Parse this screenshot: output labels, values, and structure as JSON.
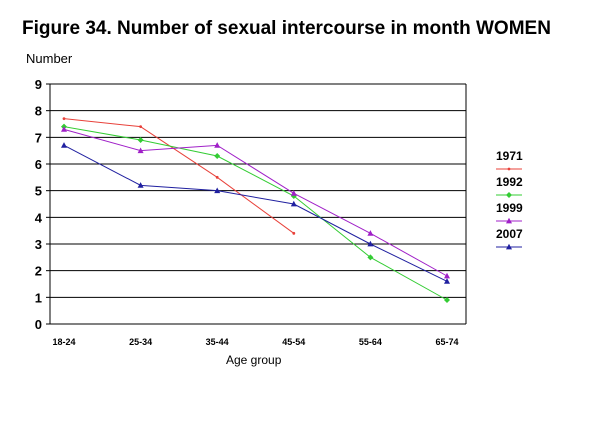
{
  "chart_data": {
    "type": "line",
    "title": "Figure 34. Number of sexual intercourse in month WOMEN",
    "ylabel": "Number",
    "xlabel": "Age group",
    "ylim": [
      0,
      9
    ],
    "yticks": [
      0,
      1,
      2,
      3,
      4,
      5,
      6,
      7,
      8,
      9
    ],
    "grid": true,
    "legend_position": "right",
    "categories": [
      "18-24",
      "25-34",
      "35-44",
      "45-54",
      "55-64",
      "65-74"
    ],
    "series": [
      {
        "name": "1971",
        "color": "#e8413a",
        "marker": "dot",
        "values": [
          7.7,
          7.4,
          5.5,
          3.4,
          null,
          null
        ]
      },
      {
        "name": "1992",
        "color": "#33cc33",
        "marker": "diamond",
        "values": [
          7.4,
          6.9,
          6.3,
          4.8,
          2.5,
          0.9
        ]
      },
      {
        "name": "1999",
        "color": "#a020c8",
        "marker": "triangle",
        "values": [
          7.3,
          6.5,
          6.7,
          4.9,
          3.4,
          1.8
        ]
      },
      {
        "name": "2007",
        "color": "#2020a0",
        "marker": "triangle",
        "values": [
          6.7,
          5.2,
          5.0,
          4.5,
          3.0,
          1.6
        ]
      }
    ]
  }
}
